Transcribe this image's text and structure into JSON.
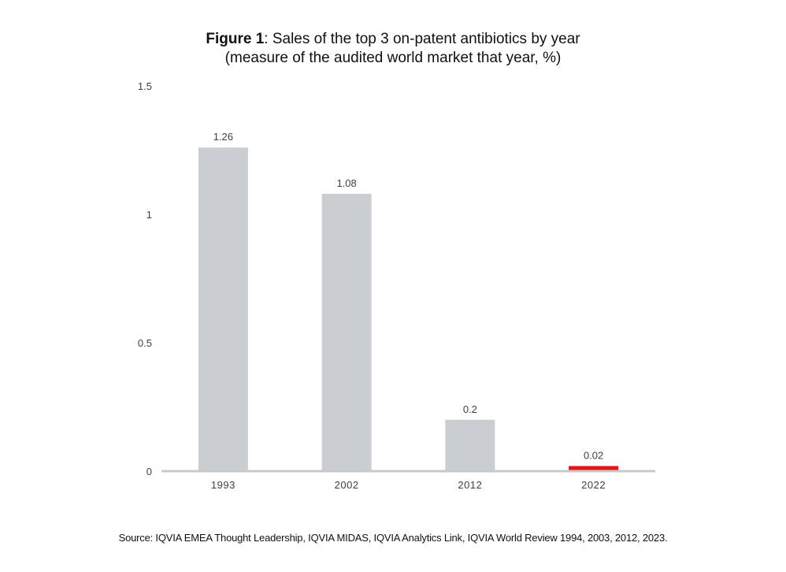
{
  "chart_data": {
    "type": "bar",
    "title_bold": "Figure 1",
    "title_rest": ": Sales of the top 3 on-patent antibiotics by year",
    "subtitle": "(measure of the audited world market that year, %)",
    "categories": [
      "1993",
      "2002",
      "2012",
      "2022"
    ],
    "values": [
      1.26,
      1.08,
      0.2,
      0.02
    ],
    "data_labels": [
      "1.26",
      "1.08",
      "0.2",
      "0.02"
    ],
    "yticks": [
      0,
      0.5,
      1,
      1.5
    ],
    "ytick_labels": [
      "0",
      "0.5",
      "1",
      "1.5"
    ],
    "ylim": [
      0,
      1.5
    ],
    "xlabel": "",
    "ylabel": "",
    "grid": false,
    "colors": {
      "bar": "#cbced0",
      "highlight": "#e3141b",
      "axis": "#c8c8c8",
      "text": "#404040"
    },
    "highlight_index": 3
  },
  "source": "Source: IQVIA EMEA Thought Leadership, IQVIA MIDAS, IQVIA Analytics Link, IQVIA World Review 1994, 2003, 2012, 2023."
}
